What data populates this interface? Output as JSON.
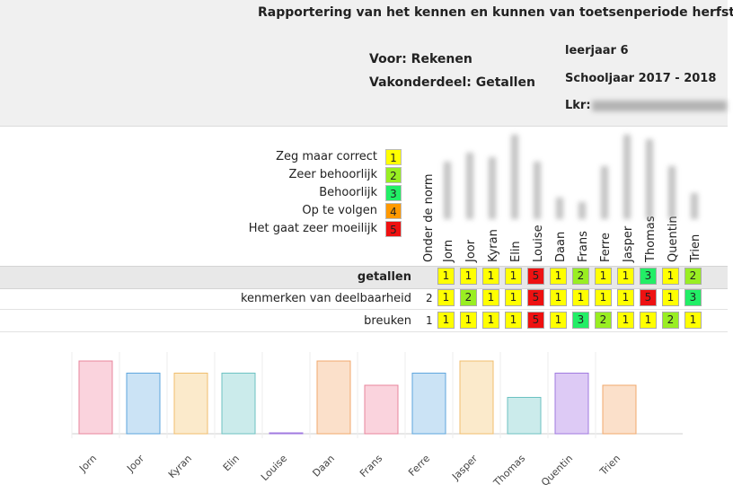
{
  "header": {
    "title": "Rapportering van het kennen en kunnen van toetsenperiode herfst",
    "voor": "Voor: Rekenen",
    "vakonderdeel": "Vakonderdeel: Getallen",
    "grade": "leerjaar 6",
    "schoolyear": "Schooljaar 2017 - 2018",
    "teacher_label": "Lkr:"
  },
  "legend": [
    {
      "label": "Zeg maar correct",
      "value": "1",
      "color": "#ffff00"
    },
    {
      "label": "Zeer behoorlijk",
      "value": "2",
      "color": "#99ee22"
    },
    {
      "label": "Behoorlijk",
      "value": "3",
      "color": "#22ee66"
    },
    {
      "label": "Op te volgen",
      "value": "4",
      "color": "#ff9900"
    },
    {
      "label": "Het gaat zeer moeilijk",
      "value": "5",
      "color": "#ee1111"
    }
  ],
  "norm_header": "Onder de norm",
  "students": [
    "Jorn",
    "Joor",
    "Kyran",
    "Elin",
    "Louise",
    "Daan",
    "Frans",
    "Ferre",
    "Jasper",
    "Thomas",
    "Quentin",
    "Trien"
  ],
  "rows": [
    {
      "label": "getallen",
      "norm": "",
      "values": [
        "1",
        "1",
        "1",
        "1",
        "5",
        "1",
        "2",
        "1",
        "1",
        "3",
        "1",
        "2"
      ]
    },
    {
      "label": "kenmerken van deelbaarheid",
      "norm": "2",
      "values": [
        "1",
        "2",
        "1",
        "1",
        "5",
        "1",
        "1",
        "1",
        "1",
        "5",
        "1",
        "3"
      ]
    },
    {
      "label": "breuken",
      "norm": "1",
      "values": [
        "1",
        "1",
        "1",
        "1",
        "5",
        "1",
        "3",
        "2",
        "1",
        "1",
        "2",
        "1"
      ]
    }
  ],
  "chart_data": {
    "type": "bar",
    "categories": [
      "Jorn",
      "Joor",
      "Kyran",
      "Elin",
      "Louise",
      "Daan",
      "Frans",
      "Ferre",
      "Jasper",
      "Thomas",
      "Quentin",
      "Trien"
    ],
    "values": [
      90,
      75,
      75,
      75,
      1,
      90,
      60,
      75,
      90,
      45,
      75,
      60
    ],
    "ylim": [
      0,
      100
    ],
    "colors": [
      "#f7b6c6",
      "#a8d1ef",
      "#f8dca8",
      "#a8dede",
      "#c6a6ef",
      "#f8cca6",
      "#f7b6c6",
      "#a8d1ef",
      "#f8dca8",
      "#a8dede",
      "#c6a6ef",
      "#f8cca6"
    ],
    "border_colors": [
      "#e8849c",
      "#5ea6dd",
      "#f0bd6c",
      "#6cc2c2",
      "#a07ae0",
      "#f0a86c",
      "#e8849c",
      "#5ea6dd",
      "#f0bd6c",
      "#6cc2c2",
      "#a07ae0",
      "#f0a86c"
    ]
  },
  "value_colors": {
    "1": "#ffff00",
    "2": "#99ee22",
    "3": "#22ee66",
    "4": "#ff9900",
    "5": "#ee1111"
  }
}
